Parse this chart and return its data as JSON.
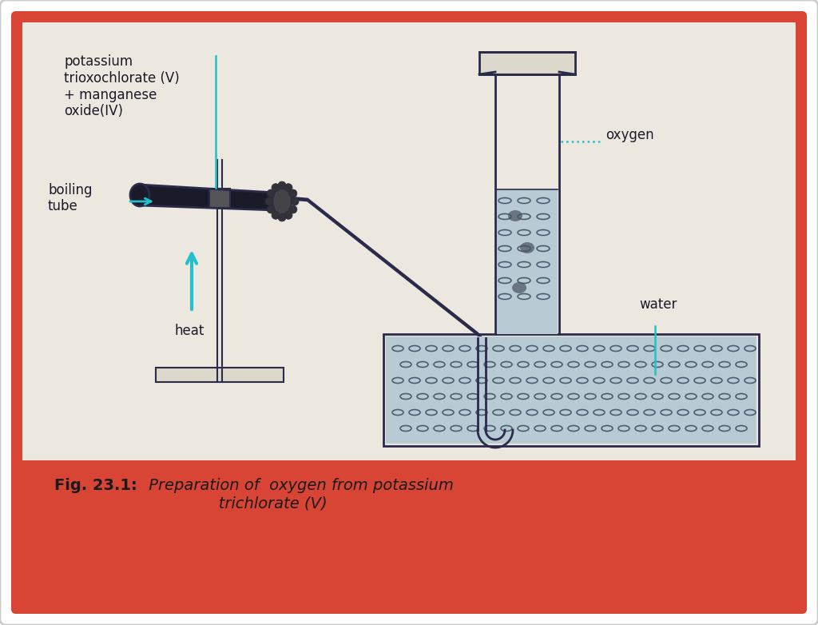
{
  "bg_outer": "#ffffff",
  "bg_red": "#d94535",
  "bg_cream": "#ece8e0",
  "line_color": "#2a2a4a",
  "water_color": "#b8cad4",
  "water_dash_color": "#4a6070",
  "cyan_color": "#22c0cc",
  "tube_dark": "#1a1a28",
  "caption_bold": "Fig. 23.1:",
  "caption_italic": " Preparation of  oxygen from potassium\n               trichlorate (V)",
  "lbl_potassium": "potassium\ntrioxochlorate (V)\n+ manganese\noxide(IV)",
  "lbl_boiling": "boiling\ntube",
  "lbl_heat": "heat",
  "lbl_oxygen": "oxygen",
  "lbl_water": "water",
  "fs_label": 12,
  "fs_caption_bold": 14,
  "fs_caption_italic": 14
}
